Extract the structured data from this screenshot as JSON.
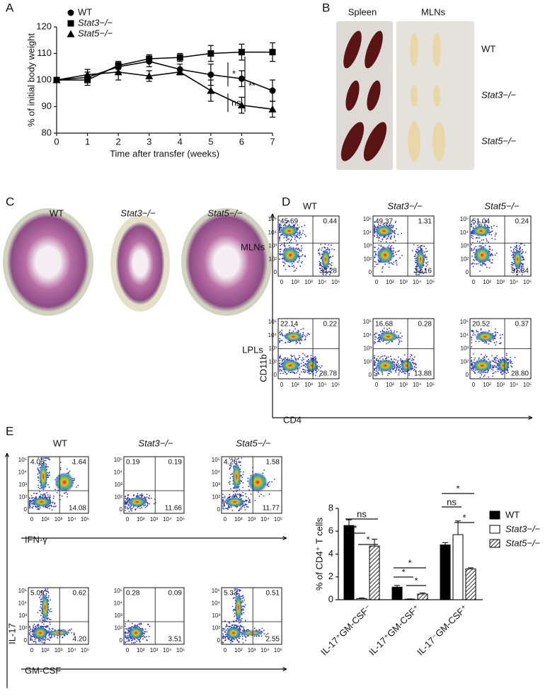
{
  "panel_labels": [
    "A",
    "B",
    "C",
    "D",
    "E"
  ],
  "chart_data": [
    {
      "type": "line",
      "x_label": "Time after transfer (weeks)",
      "y_label": "% of initial body weight",
      "x": [
        0,
        1,
        2,
        3,
        4,
        5,
        6,
        7
      ],
      "xlim": [
        0,
        7
      ],
      "xticks": [
        0,
        1,
        2,
        3,
        4,
        5,
        6,
        7
      ],
      "ylim": [
        80,
        120
      ],
      "yticks": [
        80,
        90,
        100,
        110,
        120
      ],
      "series": [
        {
          "name": "WT",
          "color": "#000000",
          "marker": "circle",
          "values": [
            100,
            101,
            105,
            107,
            104,
            102,
            100.5,
            96
          ],
          "errors": [
            1,
            2,
            2,
            2,
            2,
            4,
            3,
            4
          ]
        },
        {
          "name": "Stat3−/−",
          "color": "#000000",
          "marker": "square",
          "values": [
            100,
            100,
            105.5,
            108,
            108.5,
            110,
            110.5,
            110.5
          ],
          "errors": [
            1,
            2,
            1.5,
            1.5,
            1.5,
            3,
            3,
            3.5
          ]
        },
        {
          "name": "Stat5−/−",
          "color": "#000000",
          "marker": "triangle",
          "values": [
            100,
            102,
            103,
            101.5,
            103,
            96,
            90.5,
            89
          ],
          "errors": [
            1,
            2,
            3,
            2,
            1,
            4,
            3,
            3
          ]
        }
      ],
      "annotations": [
        "*",
        "ns",
        "**"
      ]
    },
    {
      "type": "bar",
      "y_label": "% of CD4⁺ T cells",
      "categories": [
        "IL-17⁺GM-CSF⁻",
        "IL-17⁺GM-CSF⁺",
        "IL-17⁻GM-CSF⁺"
      ],
      "ylim": [
        0,
        8
      ],
      "yticks": [
        0,
        2,
        4,
        6,
        8
      ],
      "series": [
        {
          "name": "WT",
          "color": "#000000",
          "values": [
            6.5,
            1.1,
            4.8
          ],
          "errors": [
            0.5,
            0.15,
            0.2
          ]
        },
        {
          "name": "Stat3−/−",
          "color": "#ffffff",
          "values": [
            0.1,
            0.05,
            5.7
          ],
          "errors": [
            0.05,
            0.02,
            1.2
          ]
        },
        {
          "name": "Stat5−/−",
          "color": "#ffffff",
          "pattern": "hatch",
          "values": [
            4.7,
            0.5,
            2.7
          ],
          "errors": [
            0.6,
            0.1,
            0.1
          ]
        }
      ],
      "annotations": [
        [
          "ns",
          "*",
          "*"
        ],
        [
          "*",
          "*",
          "*"
        ],
        [
          "*",
          "ns",
          "*"
        ]
      ]
    }
  ],
  "panel_b": {
    "columns": [
      "Spleen",
      "MLNs"
    ],
    "rows": [
      "WT",
      "Stat3−/−",
      "Stat5−/−"
    ]
  },
  "panel_c": {
    "labels": [
      "WT",
      "Stat3−/−",
      "Stat5−/−"
    ]
  },
  "panel_d": {
    "columns": [
      "WT",
      "Stat3−/−",
      "Stat5−/−"
    ],
    "rows": [
      "MLNs",
      "LPLs"
    ],
    "y_axis": "CD11b",
    "x_axis": "CD4",
    "ticks": [
      "0",
      "10²",
      "10³",
      "10⁴",
      "10⁵"
    ],
    "quadrants": [
      [
        [
          "45.69",
          "0.44",
          "30.28"
        ],
        [
          "49.37",
          "1.31",
          "32.16"
        ],
        [
          "51.04",
          "0.24",
          "31.34"
        ]
      ],
      [
        [
          "22.14",
          "0.22",
          "28.78"
        ],
        [
          "16.68",
          "0.28",
          "13.88"
        ],
        [
          "20.52",
          "0.37",
          "28.80"
        ]
      ]
    ]
  },
  "panel_e": {
    "columns": [
      "WT",
      "Stat3−/−",
      "Stat5−/−"
    ],
    "y_axis": "IL-17",
    "x_axes": [
      "IFN-γ",
      "GM-CSF"
    ],
    "ticks": [
      "0",
      "10²",
      "10³",
      "10⁴",
      "10⁵"
    ],
    "quadrants": [
      [
        [
          "4.06",
          "1.64",
          "14.08"
        ],
        [
          "0.19",
          "0.19",
          "11.66"
        ],
        [
          "4.26",
          "1.58",
          "11.77"
        ]
      ],
      [
        [
          "5.09",
          "0.62",
          "4.20"
        ],
        [
          "0.28",
          "0.09",
          "3.51"
        ],
        [
          "5.33",
          "0.51",
          "2.55"
        ]
      ]
    ]
  }
}
